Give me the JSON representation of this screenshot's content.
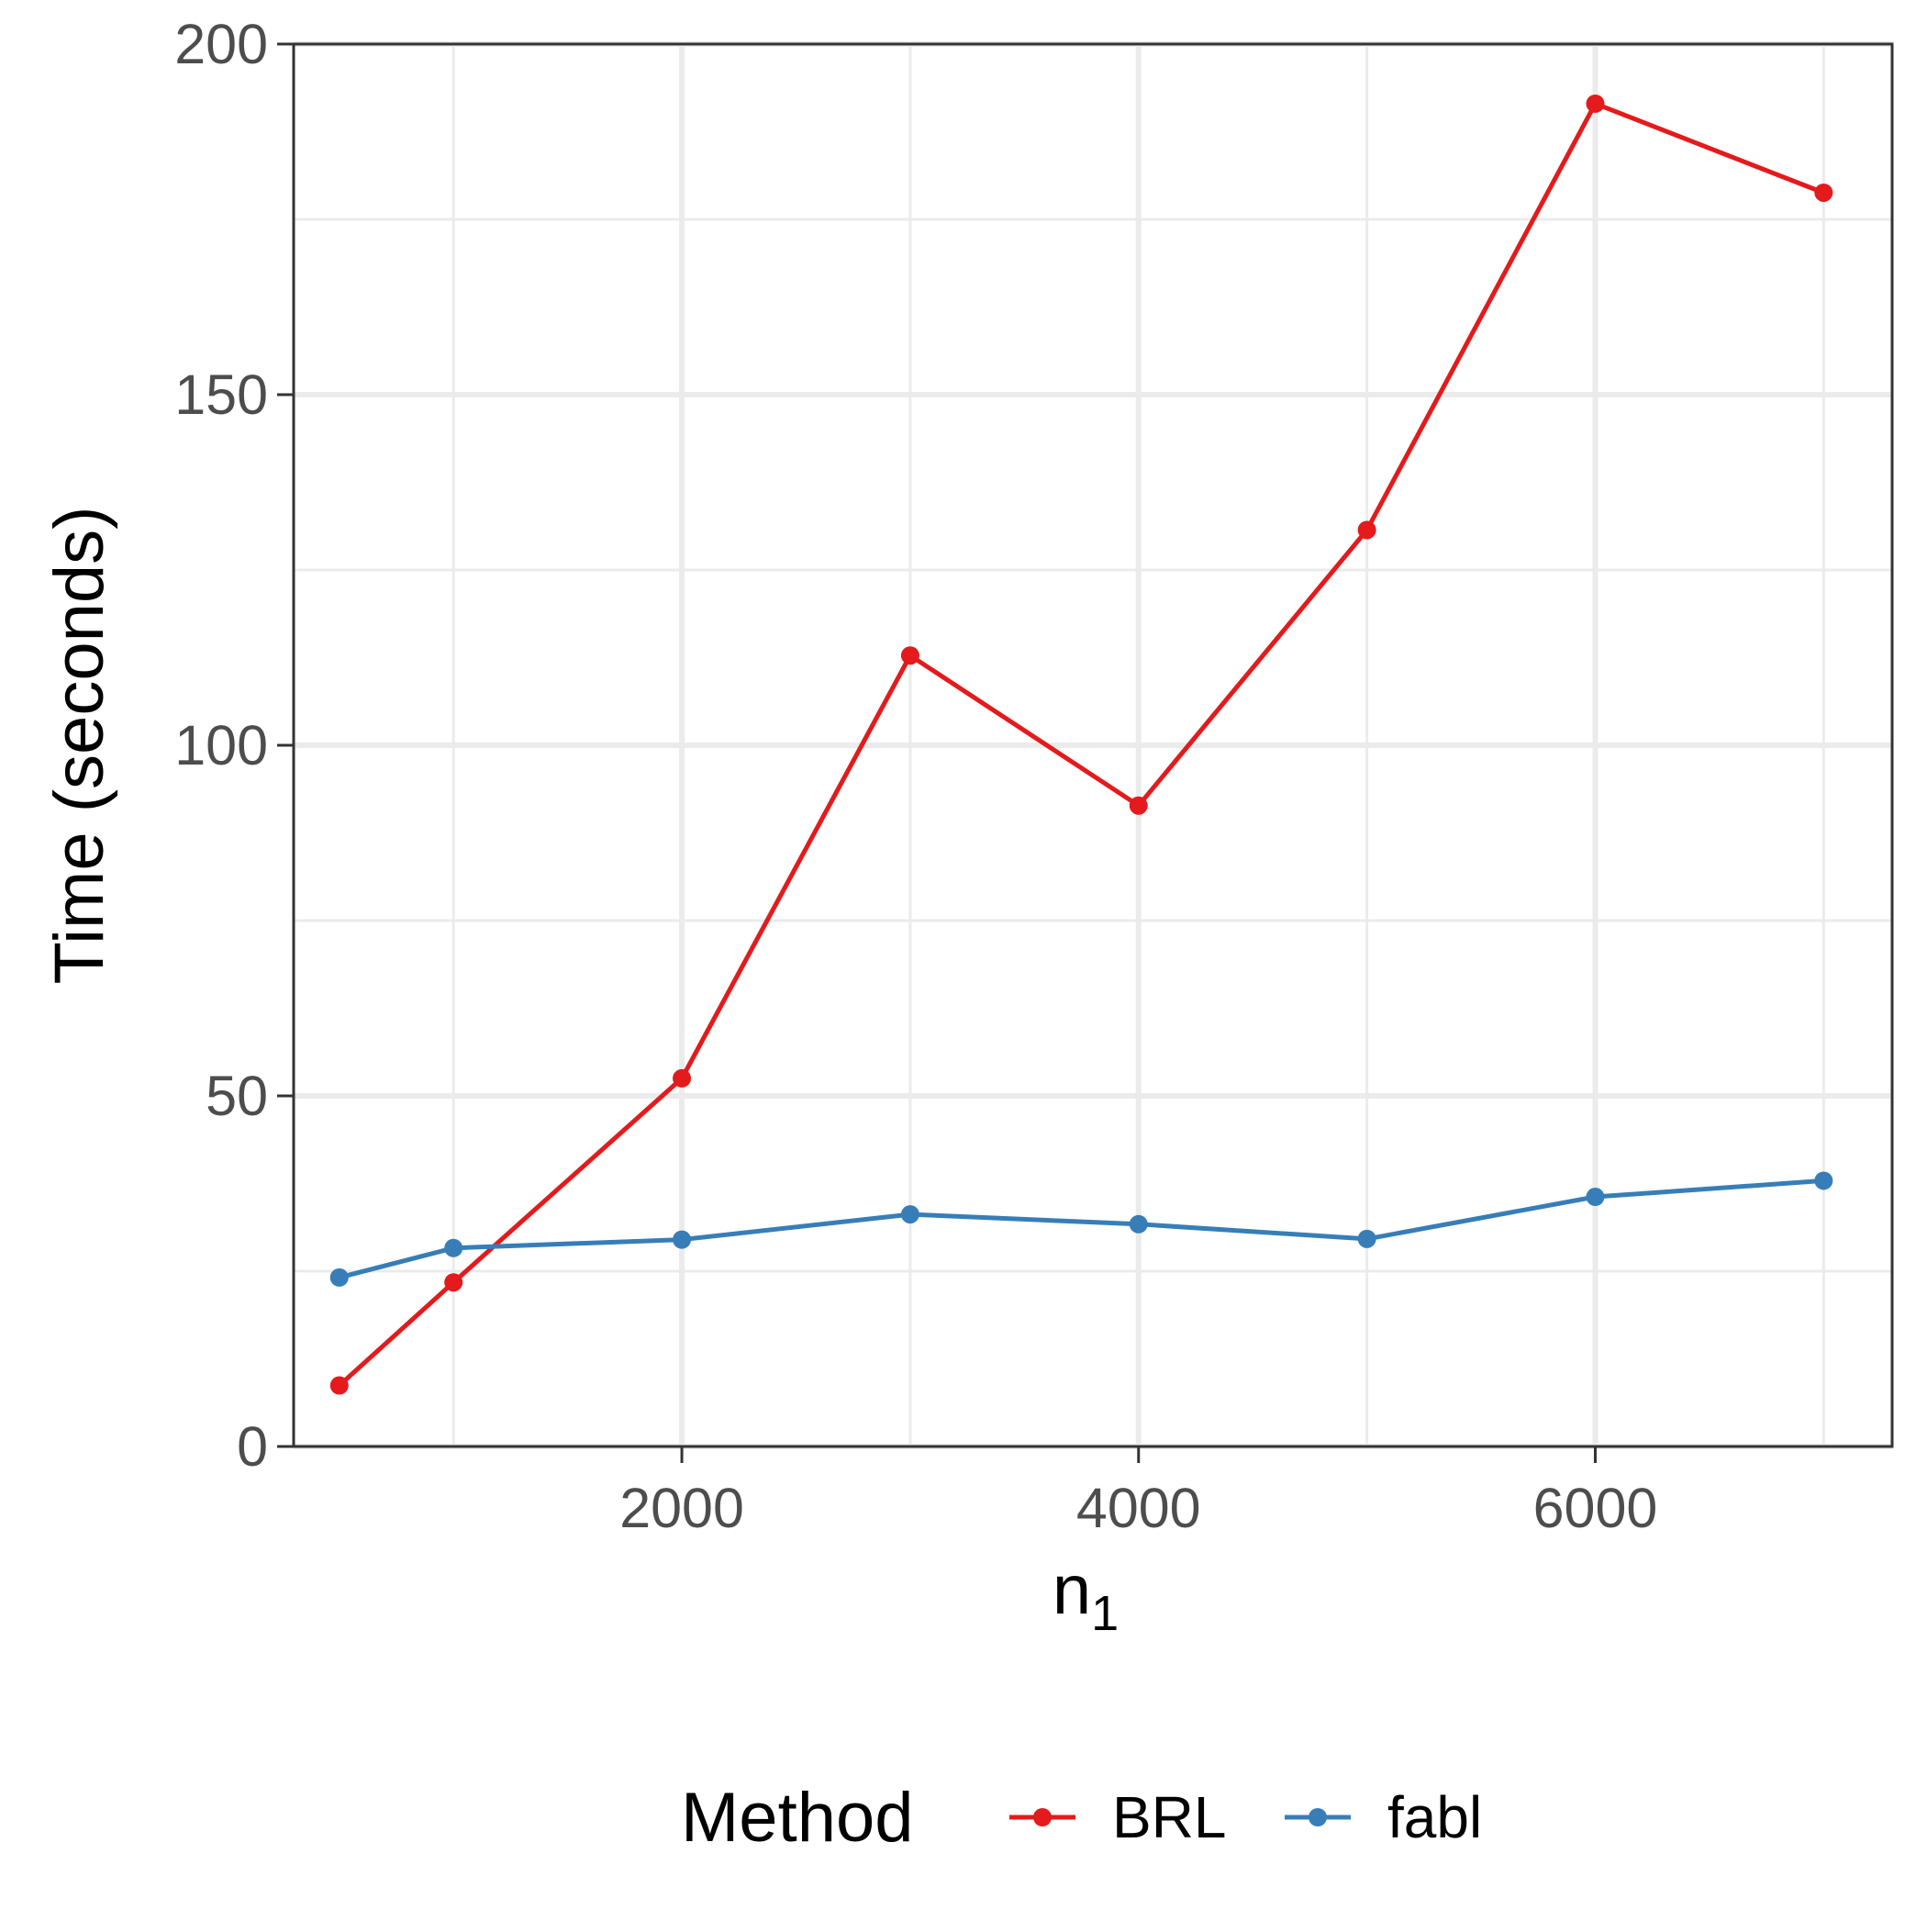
{
  "colors": {
    "brl": "#e41a1c",
    "fabl": "#377eb8",
    "grid": "#ebebeb",
    "panel_border": "#333333",
    "tick_text": "#4d4d4d",
    "title_text": "#000000"
  },
  "chart_data": {
    "type": "line",
    "xlabel": "n",
    "xlabel_subscript": "1",
    "ylabel": "Time (seconds)",
    "xlim": [
      300,
      7300
    ],
    "ylim": [
      0,
      200
    ],
    "x_ticks": [
      2000,
      4000,
      6000
    ],
    "x_tick_labels": [
      "2000",
      "4000",
      "6000"
    ],
    "x_minor": [
      1000,
      3000,
      5000,
      7000
    ],
    "y_ticks": [
      0,
      50,
      100,
      150,
      200
    ],
    "y_tick_labels": [
      "0",
      "50",
      "100",
      "150",
      "200"
    ],
    "y_minor": [
      25,
      75,
      125,
      175
    ],
    "grid": true,
    "legend": {
      "title": "Method",
      "position": "bottom",
      "entries": [
        "BRL",
        "fabl"
      ]
    },
    "series": [
      {
        "name": "BRL",
        "color": "#e41a1c",
        "x": [
          500,
          1000,
          2000,
          3000,
          4000,
          5000,
          6000,
          7000
        ],
        "y": [
          8.7,
          23.4,
          52.5,
          112.8,
          91.4,
          130.7,
          191.5,
          178.8
        ]
      },
      {
        "name": "fabl",
        "color": "#377eb8",
        "x": [
          500,
          1000,
          2000,
          3000,
          4000,
          5000,
          6000,
          7000
        ],
        "y": [
          24.1,
          28.3,
          29.5,
          33.1,
          31.7,
          29.6,
          35.6,
          37.9
        ]
      }
    ]
  }
}
